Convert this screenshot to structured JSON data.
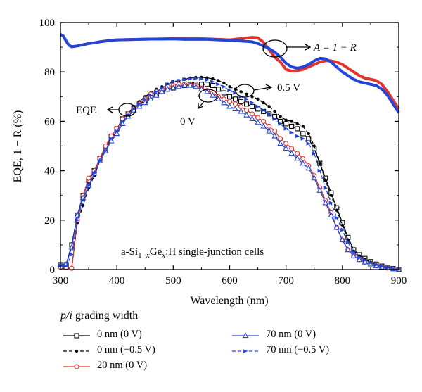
{
  "chart_data": {
    "type": "line",
    "xlabel": "Wavelength (nm)",
    "ylabel": "EQE, 1 − R (%)",
    "xlim": [
      300,
      900
    ],
    "ylim": [
      0,
      100
    ],
    "xticks": [
      "300",
      "400",
      "500",
      "600",
      "700",
      "800",
      "900"
    ],
    "yticks": [
      "0",
      "20",
      "40",
      "60",
      "80",
      "100"
    ],
    "grid": false,
    "legend_title_italic": "p/i",
    "legend_title_rest": " grading width",
    "annotations": {
      "absorption": "A = 1 − R",
      "eqe": "EQE",
      "bias_05": "0.5 V",
      "bias_0": "0 V",
      "cells": "a-Si1−xGex:H single-junction cells"
    },
    "series": [
      {
        "name": "0 nm (0 V)",
        "color": "#000000",
        "marker": "square",
        "dash": "solid",
        "x": [
          300,
          310,
          320,
          330,
          340,
          350,
          360,
          370,
          380,
          390,
          400,
          410,
          420,
          430,
          440,
          450,
          460,
          470,
          480,
          490,
          500,
          510,
          520,
          530,
          540,
          550,
          560,
          570,
          580,
          590,
          600,
          610,
          620,
          630,
          640,
          650,
          660,
          670,
          680,
          690,
          700,
          710,
          720,
          730,
          740,
          750,
          760,
          770,
          780,
          790,
          800,
          810,
          820,
          830,
          840,
          850,
          860,
          870,
          880,
          890,
          900
        ],
        "y": [
          2,
          2,
          10,
          22,
          30,
          36,
          40,
          45,
          49,
          54,
          57,
          61,
          63,
          65.5,
          67,
          68.5,
          69.5,
          71,
          72,
          73,
          73.5,
          74,
          74.5,
          75,
          75,
          75,
          75,
          74.5,
          73,
          71.5,
          70,
          69,
          68,
          67,
          66,
          65,
          64,
          63,
          62,
          60,
          59,
          58,
          57,
          55,
          53,
          49,
          43,
          37,
          31,
          25,
          19,
          13,
          8,
          6,
          4.5,
          3.2,
          2.2,
          1.4,
          0.9,
          0.4,
          0.1
        ]
      },
      {
        "name": "0 nm (−0.5 V)",
        "color": "#000000",
        "marker": "dot",
        "dash": "dashed",
        "x": [
          300,
          310,
          320,
          330,
          340,
          350,
          360,
          370,
          380,
          390,
          400,
          410,
          420,
          430,
          440,
          450,
          460,
          470,
          480,
          490,
          500,
          510,
          520,
          530,
          540,
          550,
          560,
          570,
          580,
          590,
          600,
          610,
          620,
          630,
          640,
          650,
          660,
          670,
          680,
          690,
          700,
          710,
          720,
          730,
          740,
          750,
          760,
          770,
          780,
          790,
          800,
          810,
          820,
          830,
          840,
          850,
          860,
          870,
          880,
          890,
          900
        ],
        "y": [
          0.5,
          0.5,
          0.5,
          19,
          26,
          33,
          38,
          44,
          48,
          53,
          56,
          60,
          63,
          66,
          68,
          70,
          71.5,
          73,
          74,
          75,
          76,
          76.5,
          77,
          77.5,
          77.8,
          77.8,
          77.6,
          77.2,
          76.5,
          75.5,
          74,
          73,
          72,
          71,
          70,
          69,
          67.5,
          66,
          64,
          62,
          60.5,
          60,
          59,
          58,
          55,
          50,
          43,
          36,
          30,
          24,
          18,
          12,
          7.5,
          5.5,
          4,
          3,
          2,
          1.3,
          0.8,
          0.3,
          0.1
        ]
      },
      {
        "name": "20 nm (0 V)",
        "color": "#e0342c",
        "marker": "circle",
        "dash": "solid",
        "x": [
          300,
          310,
          320,
          330,
          340,
          350,
          360,
          370,
          380,
          390,
          400,
          410,
          420,
          430,
          440,
          450,
          460,
          470,
          480,
          490,
          500,
          510,
          520,
          530,
          540,
          550,
          560,
          570,
          580,
          590,
          600,
          610,
          620,
          630,
          640,
          650,
          660,
          670,
          680,
          690,
          700,
          710,
          720,
          730,
          740,
          750,
          760,
          770,
          780,
          790,
          800,
          810,
          820,
          830,
          840,
          850,
          860,
          870,
          880,
          890,
          900
        ],
        "y": [
          1,
          1,
          0.5,
          20,
          30,
          37,
          40,
          45,
          50,
          54,
          57,
          61,
          63,
          65,
          67,
          69,
          71,
          72,
          73,
          74,
          74.5,
          75,
          75,
          74.8,
          74.5,
          73.5,
          72.5,
          71.5,
          70,
          69,
          68,
          67,
          66,
          64.5,
          63,
          61.5,
          60,
          58,
          56,
          53,
          51,
          49,
          47,
          45,
          42,
          38,
          33,
          28,
          23,
          17,
          12,
          8,
          5.5,
          4,
          3,
          2.2,
          1.5,
          1,
          0.6,
          0.3,
          0.1
        ]
      },
      {
        "name": "70 nm (0 V)",
        "color": "#2346d6",
        "marker": "triangle",
        "dash": "solid",
        "x": [
          300,
          310,
          320,
          330,
          340,
          350,
          360,
          370,
          380,
          390,
          400,
          410,
          420,
          430,
          440,
          450,
          460,
          470,
          480,
          490,
          500,
          510,
          520,
          530,
          540,
          550,
          560,
          570,
          580,
          590,
          600,
          610,
          620,
          630,
          640,
          650,
          660,
          670,
          680,
          690,
          700,
          710,
          720,
          730,
          740,
          750,
          760,
          770,
          780,
          790,
          800,
          810,
          820,
          830,
          840,
          850,
          860,
          870,
          880,
          890,
          900
        ],
        "y": [
          2,
          2,
          9,
          22,
          29,
          34,
          39,
          44,
          48,
          52,
          55,
          59,
          62,
          64.5,
          66,
          67.5,
          69,
          70.5,
          72,
          73,
          73.5,
          74,
          74.5,
          74.5,
          74,
          73,
          72,
          70.5,
          69,
          67.5,
          66,
          65,
          64,
          62.5,
          61,
          59.5,
          58,
          56,
          54,
          51,
          49,
          47,
          45,
          43,
          41,
          37,
          32,
          27,
          22,
          17,
          12,
          8,
          5.5,
          4,
          3,
          2.2,
          1.5,
          1,
          0.6,
          0.3,
          0.1
        ]
      },
      {
        "name": "70 nm (−0.5 V)",
        "color": "#2346d6",
        "marker": "arrow",
        "dash": "dashed",
        "x": [
          300,
          310,
          320,
          330,
          340,
          350,
          360,
          370,
          380,
          390,
          400,
          410,
          420,
          430,
          440,
          450,
          460,
          470,
          480,
          490,
          500,
          510,
          520,
          530,
          540,
          550,
          560,
          570,
          580,
          590,
          600,
          610,
          620,
          630,
          640,
          650,
          660,
          670,
          680,
          690,
          700,
          710,
          720,
          730,
          740,
          750,
          760,
          770,
          780,
          790,
          800,
          810,
          820,
          830,
          840,
          850,
          860,
          870,
          880,
          890,
          900
        ],
        "y": [
          1.5,
          1.5,
          6,
          20,
          28,
          34,
          39,
          44,
          48,
          53,
          56,
          60,
          62.5,
          65,
          67,
          69,
          70.5,
          72,
          73.5,
          75,
          76,
          76.5,
          77,
          77.2,
          77.3,
          77.2,
          76.8,
          76,
          75,
          74,
          72.5,
          71.5,
          70,
          69,
          67.5,
          66,
          64.5,
          63,
          61,
          59,
          57,
          55.5,
          54,
          53,
          51,
          47,
          40,
          33,
          27,
          21,
          16,
          11,
          7,
          5,
          3.8,
          2.8,
          1.9,
          1.2,
          0.7,
          0.3,
          0.1
        ]
      },
      {
        "name": "A = 1 − R (20 nm)",
        "color": "#e0342c",
        "marker": "none",
        "dash": "solid",
        "width": 4,
        "x": [
          300,
          305,
          310,
          315,
          320,
          330,
          340,
          350,
          360,
          370,
          380,
          390,
          400,
          420,
          440,
          460,
          480,
          500,
          520,
          540,
          560,
          580,
          600,
          620,
          640,
          650,
          660,
          670,
          680,
          690,
          700,
          710,
          720,
          730,
          740,
          750,
          760,
          770,
          780,
          790,
          800,
          810,
          820,
          830,
          840,
          850,
          860,
          870,
          880,
          890,
          900
        ],
        "y": [
          95.2,
          94.5,
          92.5,
          90.8,
          90.2,
          90.5,
          91,
          91.5,
          91.8,
          92.2,
          92.5,
          92.8,
          93,
          93.1,
          93.2,
          93.3,
          93.4,
          93.5,
          93.5,
          93.5,
          93.4,
          93.2,
          93,
          93.5,
          94,
          93.8,
          92,
          89,
          86,
          84,
          81,
          80.3,
          80.5,
          81,
          82,
          83,
          84,
          84.5,
          84.5,
          84,
          83,
          81.5,
          80,
          78.5,
          77.5,
          77,
          76.5,
          75,
          72,
          68.5,
          65
        ]
      },
      {
        "name": "A = 1 − R (70 nm)",
        "color": "#2346d6",
        "marker": "none",
        "dash": "solid",
        "width": 4,
        "x": [
          300,
          305,
          310,
          315,
          320,
          330,
          340,
          350,
          360,
          370,
          380,
          390,
          400,
          420,
          440,
          460,
          480,
          500,
          520,
          540,
          560,
          580,
          600,
          620,
          640,
          650,
          660,
          670,
          680,
          690,
          700,
          710,
          720,
          730,
          740,
          750,
          760,
          770,
          780,
          790,
          800,
          810,
          820,
          830,
          840,
          850,
          860,
          870,
          880,
          890,
          900
        ],
        "y": [
          95.2,
          94.5,
          92.5,
          90.8,
          90.2,
          90.5,
          91,
          91.5,
          91.8,
          92.2,
          92.5,
          92.8,
          93,
          93.1,
          93.2,
          93.3,
          93.3,
          93.4,
          93.2,
          93.2,
          93.2,
          93,
          92.8,
          92.5,
          92.2,
          91.5,
          90.5,
          89.5,
          88,
          86,
          83.5,
          82,
          81.5,
          82,
          83,
          84.5,
          85.5,
          85.3,
          84,
          82,
          80,
          78.5,
          77,
          76,
          75.5,
          75,
          74.5,
          73,
          70.5,
          67,
          63.5
        ]
      }
    ]
  }
}
